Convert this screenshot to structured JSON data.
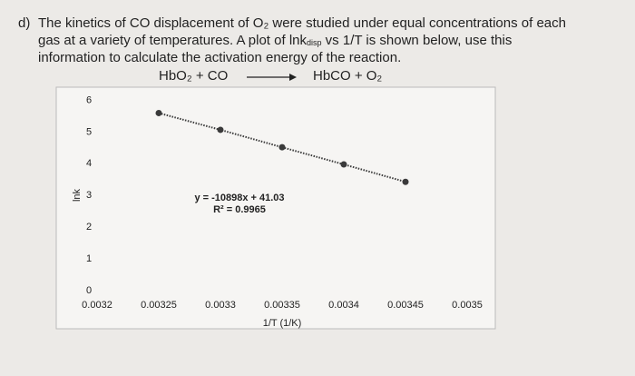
{
  "question": {
    "label": "d)",
    "lines": [
      [
        "The kinetics of CO displacement of O₂ were studied under equal concentrations of each"
      ],
      [
        "gas at a variety of temperatures. A plot of lnk",
        "disp",
        " vs 1/T is shown below, use this"
      ],
      [
        "information to calculate the activation energy of the reaction."
      ]
    ]
  },
  "reaction": {
    "reactants": "HbO₂ + CO",
    "products": "HbCO + O₂"
  },
  "chart_data": {
    "type": "line",
    "x": [
      0.00325,
      0.0033,
      0.00335,
      0.0034,
      0.00345
    ],
    "values": [
      5.6,
      5.07,
      4.52,
      3.98,
      3.43
    ],
    "color": "#3a3a3a",
    "xlim": [
      0.0032,
      0.0035
    ],
    "ylim": [
      0,
      6.3
    ],
    "xticks": [
      0.0032,
      0.00325,
      0.0033,
      0.00335,
      0.0034,
      0.00345,
      0.0035
    ],
    "yticks": [
      0,
      1,
      2,
      3,
      4,
      5,
      6
    ],
    "xlabel": "1/T (1/K)",
    "ylabel": "lnk",
    "annotations": [
      "y = -10898x + 41.03",
      "R² = 0.9965"
    ]
  }
}
